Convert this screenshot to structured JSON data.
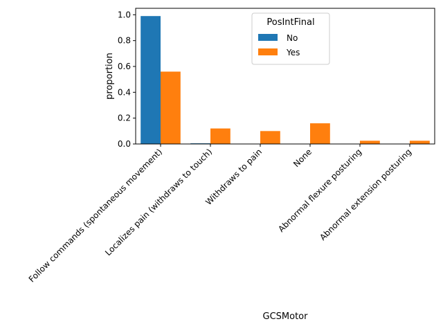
{
  "chart_data": {
    "type": "bar",
    "title": "",
    "xlabel": "GCSMotor",
    "ylabel": "proportion",
    "ylim": [
      0,
      1.05
    ],
    "yticks": [
      0.0,
      0.2,
      0.4,
      0.6,
      0.8,
      1.0
    ],
    "ytick_labels": [
      "0.0",
      "0.2",
      "0.4",
      "0.6",
      "0.8",
      "1.0"
    ],
    "grid": false,
    "categories": [
      "Follow commands (spontaneous movement)",
      "Localizes pain (withdraws to touch)",
      "Withdraws to pain",
      "None",
      "Abnormal flexure posturing",
      "Abnormal extension posturing"
    ],
    "legend": {
      "title": "PosIntFinal",
      "placement": "top-center"
    },
    "series": [
      {
        "name": "No",
        "color": "#1f77b4",
        "values": [
          0.99,
          0.005,
          0.0,
          0.0,
          0.0,
          0.0
        ]
      },
      {
        "name": "Yes",
        "color": "#ff7f0e",
        "values": [
          0.56,
          0.12,
          0.1,
          0.16,
          0.025,
          0.025
        ]
      }
    ]
  }
}
